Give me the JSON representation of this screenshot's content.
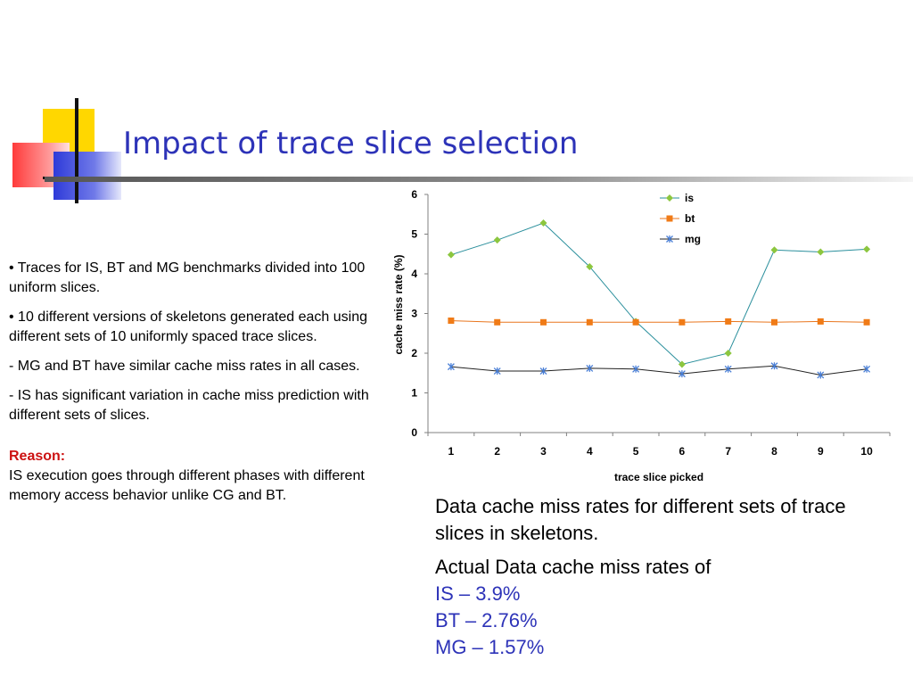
{
  "slide": {
    "title": "Impact of trace slice selection",
    "bullets": [
      "• Traces for IS, BT and MG benchmarks divided into 100 uniform slices.",
      "• 10 different versions of skeletons generated each using different sets of 10 uniformly spaced trace slices.",
      "- MG and BT have similar cache miss rates in all cases.",
      "- IS has significant variation in cache miss prediction with different sets of slices."
    ],
    "reason_label": "Reason:",
    "reason_text": "IS execution goes through different phases with different memory access behavior unlike CG and BT.",
    "caption": "Data cache miss rates for different sets of trace slices in skeletons.",
    "actual_heading": "Actual Data cache miss rates of",
    "actual_rates": [
      "IS – 3.9%",
      "BT – 2.76%",
      "MG – 1.57%"
    ],
    "colors": {
      "title": "#2d33b8",
      "reason": "#cc1111",
      "logo_yellow": "#ffd700",
      "logo_blue": "#2f3bd9",
      "logo_red": "#ff3b3b"
    }
  },
  "chart_data": {
    "type": "line",
    "x": [
      1,
      2,
      3,
      4,
      5,
      6,
      7,
      8,
      9,
      10
    ],
    "xlabel": "trace slice picked",
    "ylabel": "cache miss rate (%)",
    "ylim": [
      0,
      6
    ],
    "yticks": [
      0,
      1,
      2,
      3,
      4,
      5,
      6
    ],
    "grid": false,
    "legend_position": "top-right",
    "series": [
      {
        "name": "is",
        "color": "#2a8f9c",
        "marker": "diamond",
        "marker_color": "#8cc63f",
        "values": [
          4.48,
          4.85,
          5.28,
          4.18,
          2.8,
          1.72,
          2.0,
          4.6,
          4.55,
          4.62
        ]
      },
      {
        "name": "bt",
        "color": "#e9761e",
        "marker": "square",
        "marker_color": "#f07b17",
        "values": [
          2.82,
          2.78,
          2.78,
          2.78,
          2.78,
          2.78,
          2.8,
          2.78,
          2.8,
          2.78
        ]
      },
      {
        "name": "mg",
        "color": "#222222",
        "marker": "star",
        "marker_color": "#4a7fd6",
        "values": [
          1.66,
          1.55,
          1.55,
          1.62,
          1.6,
          1.48,
          1.6,
          1.68,
          1.45,
          1.6
        ]
      }
    ]
  }
}
